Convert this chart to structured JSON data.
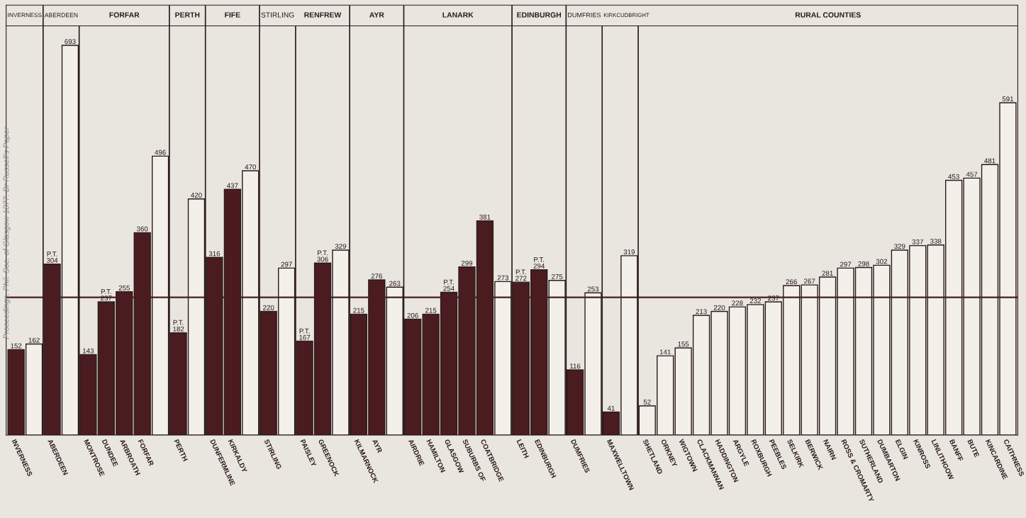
{
  "chart_data": {
    "type": "bar",
    "categories": [
      "INVERNESS",
      null,
      "ABERDEEN",
      null,
      "MONTROSE",
      "DUNDEE",
      "ARBROATH",
      "FORFAR",
      null,
      "PERTH",
      null,
      "DUNFERMLINE",
      "KIRKALDY",
      null,
      "STIRLING",
      null,
      "PAISLEY",
      "GREENOCK",
      null,
      "KILMARNOCK",
      "AYR",
      null,
      "AIRDRIE",
      "HAMILTON",
      "GLASGOW",
      "SUBURBS OF",
      "COATBRIDGE",
      null,
      "LEITH",
      "EDINBURGH",
      null,
      "DUMFRIES",
      null,
      "MAXWELLTOWN",
      null,
      "SHETLAND",
      "ORKNEY",
      "WIGTOWN",
      "CLACKMANNAN",
      "HADDINGTON",
      "ARGYLE",
      "ROXBURGH",
      "PEEBLES",
      "SELKIRK",
      "BERWICK",
      "NAIRN",
      "ROSS & CROMARTY",
      "SUTHERLAND",
      "DUMBARTON",
      "ELGIN",
      "KINROSS",
      "LINLITHGOW",
      "BANFF",
      "BUTE",
      "KINCARDINE",
      "CAITHNESS"
    ],
    "values": [
      152,
      162,
      304,
      693,
      143,
      237,
      255,
      360,
      496,
      182,
      420,
      316,
      437,
      470,
      220,
      297,
      167,
      306,
      329,
      215,
      276,
      263,
      206,
      215,
      254,
      299,
      381,
      273,
      272,
      294,
      275,
      116,
      253,
      41,
      319,
      52,
      141,
      155,
      213,
      220,
      228,
      232,
      237,
      266,
      267,
      281,
      297,
      298,
      302,
      329,
      337,
      338,
      453,
      457,
      481,
      591
    ],
    "colors": [
      "#4a1c20",
      "#f3f0ea",
      "#4a1c20",
      "#f3f0ea",
      "#4a1c20",
      "#4a1c20",
      "#4a1c20",
      "#4a1c20",
      "#f3f0ea",
      "#4a1c20",
      "#f3f0ea",
      "#4a1c20",
      "#4a1c20",
      "#f3f0ea",
      "#4a1c20",
      "#f3f0ea",
      "#4a1c20",
      "#4a1c20",
      "#f3f0ea",
      "#4a1c20",
      "#4a1c20",
      "#f3f0ea",
      "#4a1c20",
      "#4a1c20",
      "#4a1c20",
      "#4a1c20",
      "#4a1c20",
      "#f3f0ea",
      "#4a1c20",
      "#4a1c20",
      "#f3f0ea",
      "#4a1c20",
      "#f3f0ea",
      "#4a1c20",
      "#f3f0ea",
      "#f3f0ea",
      "#f3f0ea",
      "#f3f0ea",
      "#f3f0ea",
      "#f3f0ea",
      "#f3f0ea",
      "#f3f0ea",
      "#f3f0ea",
      "#f3f0ea",
      "#f3f0ea",
      "#f3f0ea",
      "#f3f0ea",
      "#f3f0ea",
      "#f3f0ea",
      "#f3f0ea",
      "#f3f0ea",
      "#f3f0ea",
      "#f3f0ea",
      "#f3f0ea",
      "#f3f0ea",
      "#f3f0ea"
    ],
    "value_labels": [
      "152",
      "162",
      "P.T.\n304",
      "693",
      "143",
      "P.T.\n237",
      "255",
      "360",
      "496",
      "P.T.\n182",
      "420",
      "316",
      "437",
      "470",
      "220",
      "297",
      "P.T.\n167",
      "P.T.\n306",
      "329",
      "215",
      "276",
      "263",
      "206",
      "215",
      "P.T.\n254",
      "299",
      "381",
      "273",
      "P.T.\n272",
      "P.T.\n294",
      "275",
      "116",
      "253",
      "41",
      "319",
      "52",
      "141",
      "155",
      "213",
      "220",
      "228",
      "232",
      "237",
      "266",
      "267",
      "281",
      "297",
      "298",
      "302",
      "329",
      "337",
      "338",
      "453",
      "457",
      "481",
      "591"
    ],
    "ref_lines": [
      {
        "axis": "y",
        "value": 245,
        "color": "#4a1c20"
      }
    ],
    "annotations": [
      "INVERNESS",
      "ABERDEEN",
      "FORFAR",
      "PERTH",
      "FIFE",
      "STIRLING",
      "RENFREW",
      "AYR",
      "LANARK",
      "EDINBURGH",
      "DUMFRIES",
      "KIRKCUDBRIGHT",
      "RURAL COUNTIES",
      "Proceedings, Phil. Soc. of Glasgow 1877. Dr Russell's Paper"
    ]
  }
}
